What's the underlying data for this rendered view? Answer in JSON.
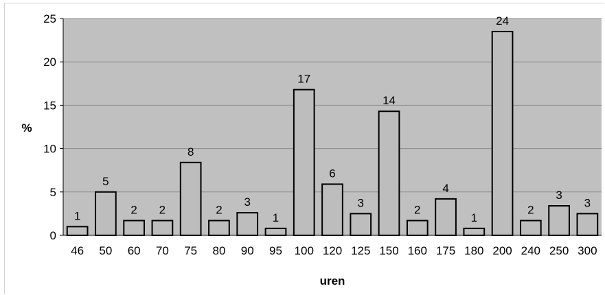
{
  "chart_data": {
    "type": "bar",
    "xlabel": "uren",
    "ylabel": "%",
    "ylim": [
      0,
      25
    ],
    "yticks": [
      0,
      5,
      10,
      15,
      20,
      25
    ],
    "grid": true,
    "colors": {
      "plot_bg": "#c0c0c0",
      "bar_fill": "#bdbdbd",
      "bar_stroke": "#000000",
      "grid": "#8c8c8c"
    },
    "categories": [
      "46",
      "50",
      "60",
      "70",
      "75",
      "80",
      "90",
      "95",
      "100",
      "120",
      "125",
      "150",
      "160",
      "175",
      "180",
      "200",
      "240",
      "250",
      "300"
    ],
    "values": [
      1.0,
      5.0,
      1.7,
      1.7,
      8.4,
      1.7,
      2.6,
      0.8,
      16.8,
      5.9,
      2.5,
      14.3,
      1.7,
      4.2,
      0.8,
      23.5,
      1.7,
      3.4,
      2.5
    ],
    "data_labels": [
      "1",
      "5",
      "2",
      "2",
      "8",
      "2",
      "3",
      "1",
      "17",
      "6",
      "3",
      "14",
      "2",
      "4",
      "1",
      "24",
      "2",
      "3",
      "3"
    ]
  }
}
